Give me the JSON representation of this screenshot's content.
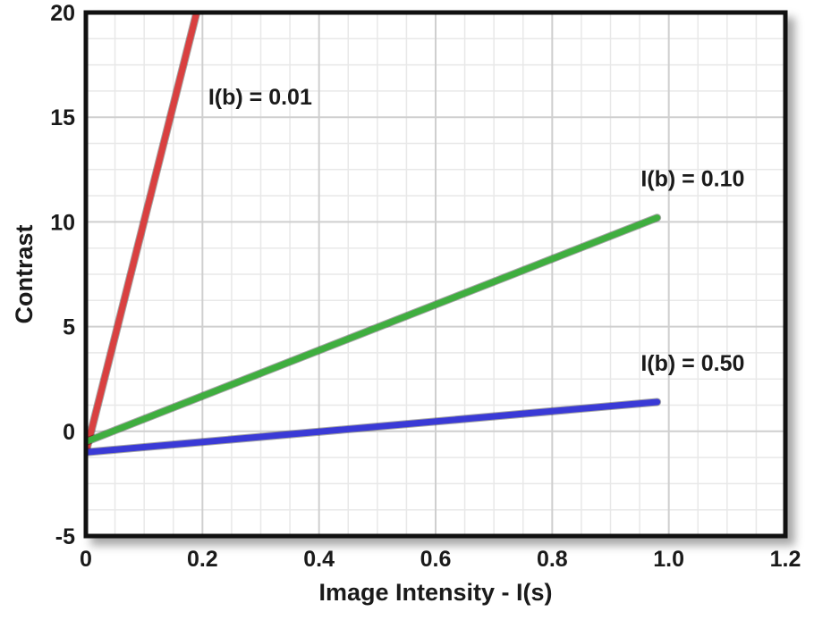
{
  "chart_data": {
    "type": "line",
    "title": "",
    "xlabel": "Image Intensity - I(s)",
    "ylabel": "Contrast",
    "xlim": [
      0,
      1.2
    ],
    "ylim": [
      -5,
      20
    ],
    "x_ticks": [
      "0",
      "0.2",
      "0.4",
      "0.6",
      "0.8",
      "1.0",
      "1.2"
    ],
    "y_ticks": [
      "-5",
      "0",
      "5",
      "10",
      "15",
      "20"
    ],
    "grid": true,
    "legend": "none (series labeled inline)",
    "series": [
      {
        "name": "I(b) = 0.01",
        "color": "#d94040",
        "x": [
          0,
          0.19
        ],
        "y": [
          -1,
          20
        ]
      },
      {
        "name": "I(b) = 0.10",
        "color": "#3fae3f",
        "x": [
          0,
          0.98
        ],
        "y": [
          -0.5,
          10.2
        ]
      },
      {
        "name": "I(b) = 0.50",
        "color": "#3a3ad6",
        "x": [
          0,
          0.98
        ],
        "y": [
          -1,
          1.4
        ]
      }
    ]
  }
}
